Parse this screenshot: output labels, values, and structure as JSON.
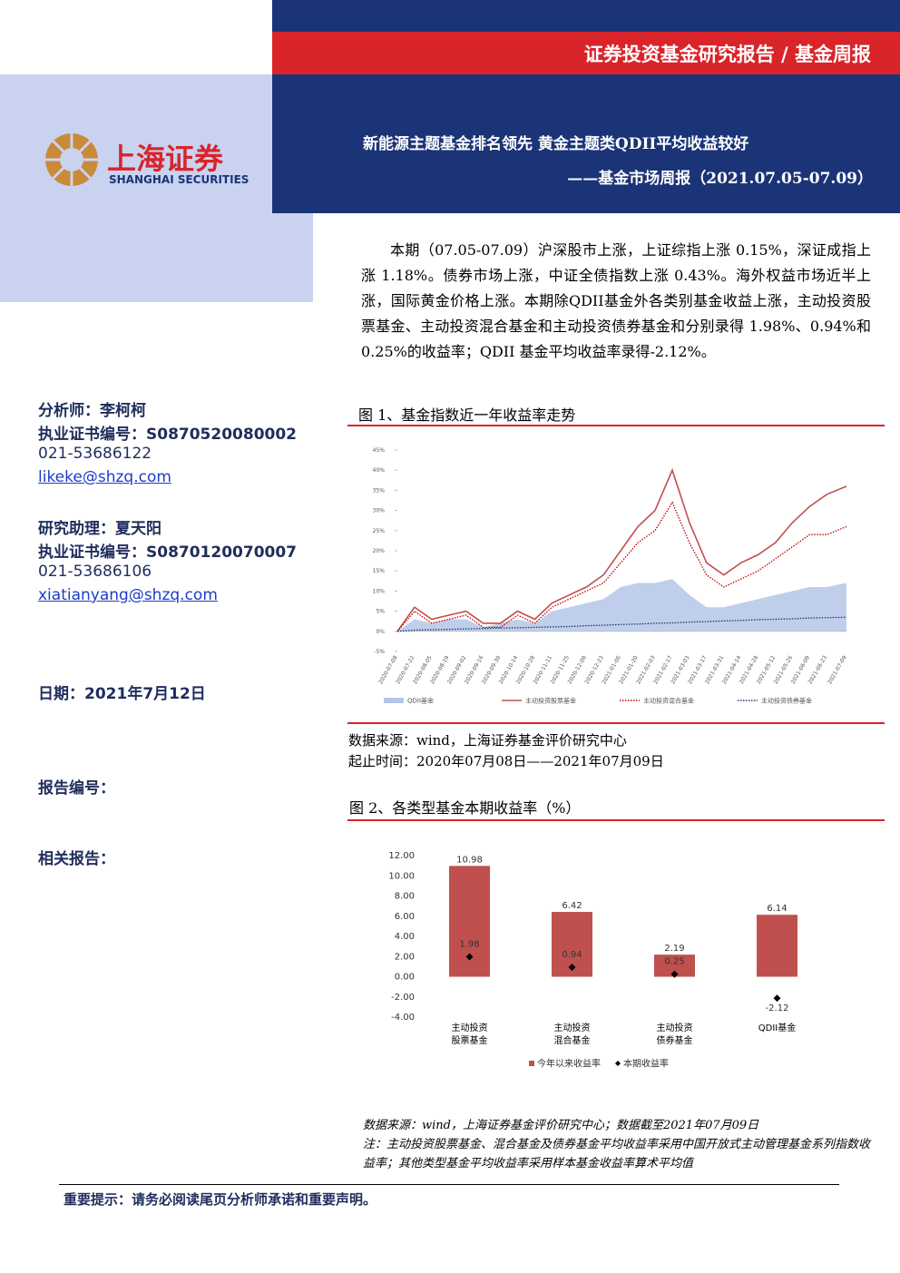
{
  "header": {
    "banner": "证券投资基金研究报告 / 基金周报",
    "logo_cn": "上海证券",
    "logo_en": "SHANGHAI SECURITIES",
    "title": "新能源主题基金排名领先 黄金主题类QDII平均收益较好",
    "subtitle": "——基金市场周报（2021.07.05-07.09）"
  },
  "sidebar": {
    "analysts": [
      {
        "role": "分析师：李柯柯",
        "license": "执业证书编号：S0870520080002",
        "phone": "021-53686122",
        "email": "likeke@shzq.com"
      },
      {
        "role": "研究助理：夏天阳",
        "license": "执业证书编号：S0870120070007",
        "phone": "021-53686106",
        "email": "xiatianyang@shzq.com"
      }
    ],
    "date": "日期：2021年7月12日",
    "report_no": "报告编号：",
    "related": "相关报告："
  },
  "summary": "本期（07.05-07.09）沪深股市上涨，上证综指上涨 0.15%，深证成指上涨 1.18%。债券市场上涨，中证全债指数上涨 0.43%。海外权益市场近半上涨，国际黄金价格上涨。本期除QDII基金外各类别基金收益上涨，主动投资股票基金、主动投资混合基金和主动投资债券基金和分别录得 1.98%、0.94%和 0.25%的收益率；QDII 基金平均收益率录得-2.12%。",
  "chart_data": [
    {
      "type": "line",
      "title": "图 1、基金指数近一年收益率走势",
      "x": [
        "2020-07-08",
        "2020-07-22",
        "2020-08-05",
        "2020-08-19",
        "2020-09-02",
        "2020-09-16",
        "2020-09-30",
        "2020-10-14",
        "2020-10-28",
        "2020-11-11",
        "2020-11-25",
        "2020-12-09",
        "2020-12-23",
        "2021-01-06",
        "2021-01-20",
        "2021-02-03",
        "2021-02-17",
        "2021-03-03",
        "2021-03-17",
        "2021-03-31",
        "2021-04-14",
        "2021-04-28",
        "2021-05-12",
        "2021-05-26",
        "2021-06-09",
        "2021-06-23",
        "2021-07-09"
      ],
      "series": [
        {
          "name": "QDII基金",
          "style": "area",
          "color": "#b4c7e7",
          "values": [
            0,
            3,
            2,
            3,
            3,
            1,
            2,
            3,
            2,
            5,
            6,
            7,
            8,
            11,
            12,
            12,
            13,
            9,
            6,
            6,
            7,
            8,
            9,
            10,
            11,
            11,
            12
          ]
        },
        {
          "name": "主动投资股票基金",
          "style": "solid",
          "color": "#c0504d",
          "values": [
            0,
            6,
            3,
            4,
            5,
            2,
            2,
            5,
            3,
            7,
            9,
            11,
            14,
            20,
            26,
            30,
            40,
            27,
            17,
            14,
            17,
            19,
            22,
            27,
            31,
            34,
            36
          ]
        },
        {
          "name": "主动投资混合基金",
          "style": "dotted",
          "color": "#c00000",
          "values": [
            0,
            5,
            2,
            3,
            4,
            1,
            1,
            4,
            2,
            6,
            8,
            10,
            12,
            17,
            22,
            25,
            32,
            22,
            14,
            11,
            13,
            15,
            18,
            21,
            24,
            24,
            26
          ]
        },
        {
          "name": "主动投资债券基金",
          "style": "dotted",
          "color": "#1f3864",
          "values": [
            0,
            0.3,
            0.4,
            0.5,
            0.6,
            0.7,
            0.8,
            0.9,
            1.0,
            1.1,
            1.2,
            1.4,
            1.5,
            1.7,
            1.8,
            2.0,
            2.1,
            2.3,
            2.4,
            2.6,
            2.7,
            2.9,
            3.0,
            3.1,
            3.3,
            3.4,
            3.5
          ]
        }
      ],
      "ylim": [
        -5,
        45
      ],
      "yticks": [
        {
          "value": -5,
          "label": "-5%"
        },
        {
          "value": 0,
          "label": "0%"
        },
        {
          "value": 5,
          "label": "5%"
        },
        {
          "value": 10,
          "label": "10%"
        },
        {
          "value": 15,
          "label": "15%"
        },
        {
          "value": 20,
          "label": "20%"
        },
        {
          "value": 25,
          "label": "25%"
        },
        {
          "value": 30,
          "label": "30%"
        },
        {
          "value": 35,
          "label": "35%"
        },
        {
          "value": 40,
          "label": "40%"
        },
        {
          "value": 45,
          "label": "45%"
        }
      ],
      "notes": [
        "数据来源：wind，上海证券基金评价研究中心",
        "起止时间：2020年07月08日——2021年07月09日"
      ]
    },
    {
      "type": "bar",
      "title": "图 2、各类型基金本期收益率（%）",
      "categories": [
        "主动投资\n股票基金",
        "主动投资\n混合基金",
        "主动投资\n债券基金",
        "QDII基金"
      ],
      "series": [
        {
          "name": "今年以来收益率",
          "style": "bar",
          "color": "#c0504d",
          "values": [
            10.98,
            6.42,
            2.19,
            6.14
          ]
        },
        {
          "name": "本期收益率",
          "style": "diamond",
          "color": "#000000",
          "values": [
            1.98,
            0.94,
            0.25,
            -2.12
          ]
        }
      ],
      "ylim": [
        -4,
        12
      ],
      "yticks": [
        {
          "value": -4,
          "label": "-4.00"
        },
        {
          "value": -2,
          "label": "-2.00"
        },
        {
          "value": 0,
          "label": "0.00"
        },
        {
          "value": 2,
          "label": "2.00"
        },
        {
          "value": 4,
          "label": "4.00"
        },
        {
          "value": 6,
          "label": "6.00"
        },
        {
          "value": 8,
          "label": "8.00"
        },
        {
          "value": 10,
          "label": "10.00"
        },
        {
          "value": 12,
          "label": "12.00"
        }
      ],
      "notes": [
        "数据来源：wind，上海证券基金评价研究中心；数据截至2021年07月09日",
        "注：主动投资股票基金、混合基金及债券基金平均收益率采用中国开放式主动管理基金系列指数收益率；其他类型基金平均收益率采用样本基金收益率算术平均值"
      ]
    }
  ],
  "footer": "重要提示：请务必阅读尾页分析师承诺和重要声明。"
}
